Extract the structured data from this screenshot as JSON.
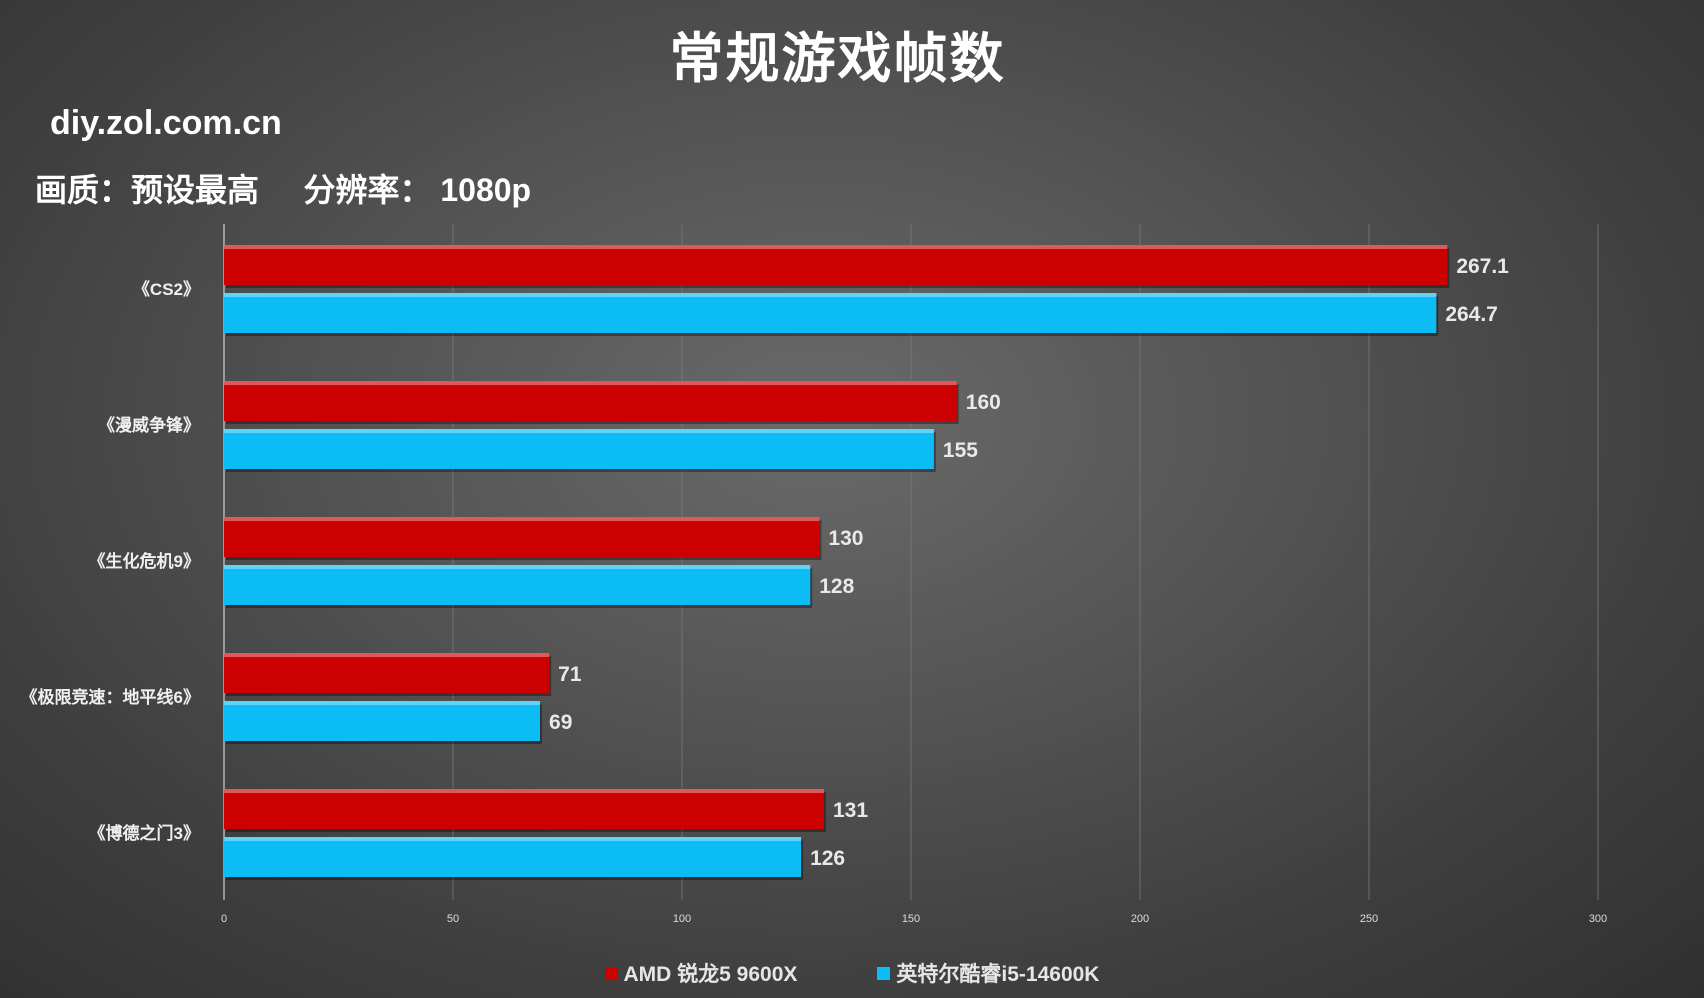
{
  "title": "常规游戏帧数",
  "site": "diy.zol.com.cn",
  "settings": "画质：预设最高     分辨率： 1080p",
  "colors": {
    "amd": "#cc0000",
    "intel": "#0bbcf5"
  },
  "chart_data": {
    "type": "bar",
    "orientation": "horizontal",
    "categories": [
      "《CS2》",
      "《漫威争锋》",
      "《生化危机9》",
      "《极限竞速：地平线6》",
      "《博德之门3》"
    ],
    "series": [
      {
        "name": "AMD 锐龙5 9600X",
        "values": [
          267.1,
          160,
          130,
          71,
          131
        ],
        "labels": [
          "267.1",
          "160",
          "130",
          "71",
          "131"
        ]
      },
      {
        "name": "英特尔酷睿i5-14600K",
        "values": [
          264.7,
          155,
          128,
          69,
          126
        ],
        "labels": [
          "264.7",
          "155",
          "128",
          "69",
          "126"
        ]
      }
    ],
    "xlim": [
      0,
      300
    ],
    "xticks": [
      0,
      50,
      100,
      150,
      200,
      250,
      300
    ],
    "grid": true,
    "legend": "bottom"
  }
}
